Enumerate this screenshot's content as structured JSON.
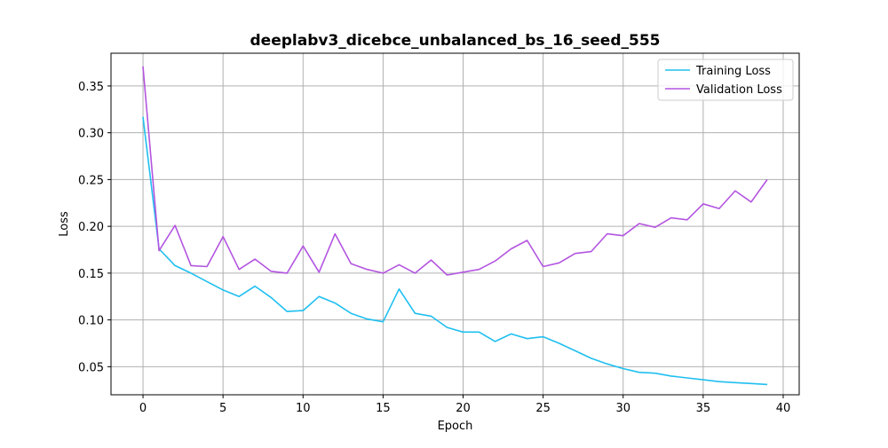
{
  "chart_data": {
    "type": "line",
    "title": "deeplabv3_dicebce_unbalanced_bs_16_seed_555",
    "xlabel": "Epoch",
    "ylabel": "Loss",
    "xlim": [
      -2,
      41
    ],
    "ylim": [
      0.02,
      0.385
    ],
    "xticks": [
      0,
      5,
      10,
      15,
      20,
      25,
      30,
      35,
      40
    ],
    "yticks": [
      0.05,
      0.1,
      0.15,
      0.2,
      0.25,
      0.3,
      0.35
    ],
    "ytick_labels": [
      "0.05",
      "0.10",
      "0.15",
      "0.20",
      "0.25",
      "0.30",
      "0.35"
    ],
    "grid": true,
    "legend_position": "top-right",
    "x": [
      0,
      1,
      2,
      3,
      4,
      5,
      6,
      7,
      8,
      9,
      10,
      11,
      12,
      13,
      14,
      15,
      16,
      17,
      18,
      19,
      20,
      21,
      22,
      23,
      24,
      25,
      26,
      27,
      28,
      29,
      30,
      31,
      32,
      33,
      34,
      35,
      36,
      37,
      38,
      39
    ],
    "series": [
      {
        "name": "Training Loss",
        "color": "#1fbff0",
        "values": [
          0.317,
          0.176,
          0.158,
          0.15,
          0.141,
          0.132,
          0.125,
          0.136,
          0.124,
          0.109,
          0.11,
          0.125,
          0.118,
          0.107,
          0.101,
          0.098,
          0.133,
          0.107,
          0.104,
          0.092,
          0.087,
          0.087,
          0.077,
          0.085,
          0.08,
          0.082,
          0.075,
          0.067,
          0.059,
          0.053,
          0.048,
          0.044,
          0.043,
          0.04,
          0.038,
          0.036,
          0.034,
          0.033,
          0.032,
          0.031
        ]
      },
      {
        "name": "Validation Loss",
        "color": "#b355e0",
        "values": [
          0.371,
          0.174,
          0.201,
          0.158,
          0.157,
          0.189,
          0.154,
          0.165,
          0.152,
          0.15,
          0.179,
          0.151,
          0.192,
          0.16,
          0.154,
          0.15,
          0.159,
          0.15,
          0.164,
          0.148,
          0.151,
          0.154,
          0.163,
          0.176,
          0.185,
          0.157,
          0.161,
          0.171,
          0.173,
          0.192,
          0.19,
          0.203,
          0.199,
          0.209,
          0.207,
          0.224,
          0.219,
          0.238,
          0.226,
          0.25
        ]
      }
    ]
  }
}
